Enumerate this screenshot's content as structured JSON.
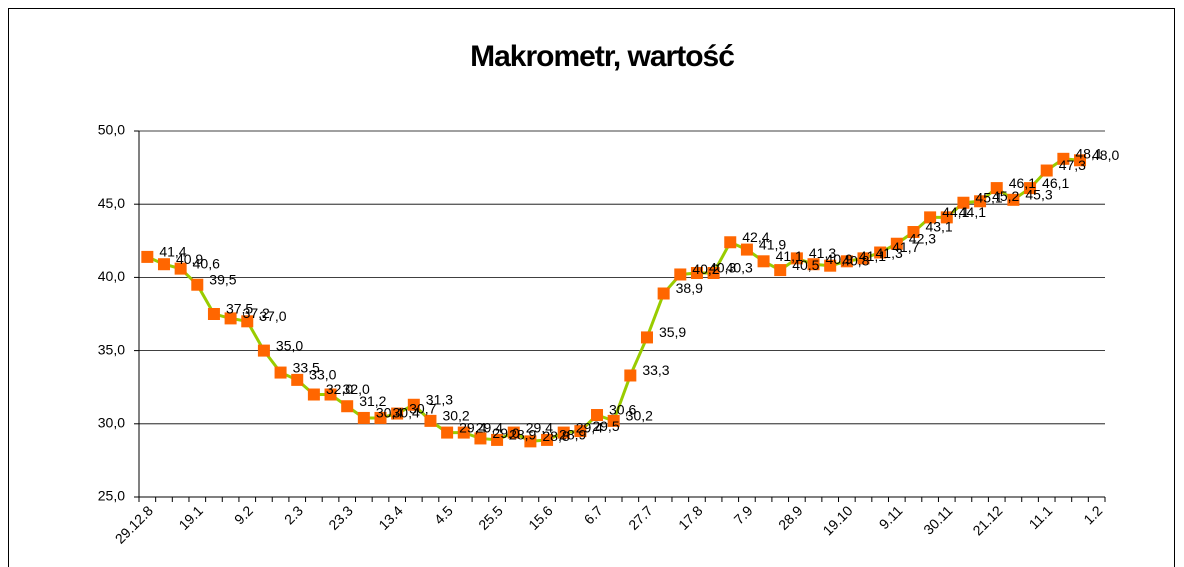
{
  "chart_data": {
    "type": "line",
    "title": "Makrometr, wartość",
    "categories": [
      "29.12.8",
      null,
      null,
      "19.1",
      null,
      null,
      "9.2",
      null,
      null,
      "2.3",
      null,
      null,
      "23.3",
      null,
      null,
      "13.4",
      null,
      null,
      "4.5",
      null,
      null,
      "25.5",
      null,
      null,
      "15.6",
      null,
      null,
      "6.7",
      null,
      null,
      "27.7",
      null,
      null,
      "17.8",
      null,
      null,
      "7.9",
      null,
      null,
      "28.9",
      null,
      null,
      "19.10",
      null,
      null,
      "9.11",
      null,
      null,
      "30.11",
      null,
      null,
      "21.12",
      null,
      null,
      "11.1",
      null,
      null,
      "1.2"
    ],
    "series": [
      {
        "name": "wartość",
        "color": "#99cc00",
        "marker_color": "#ff6600",
        "values": [
          41.4,
          40.9,
          40.6,
          39.5,
          37.5,
          37.2,
          37.0,
          35.0,
          33.5,
          33.0,
          32.0,
          32.0,
          31.2,
          30.4,
          30.4,
          30.7,
          31.3,
          30.2,
          29.4,
          29.4,
          29.0,
          28.9,
          29.4,
          28.8,
          28.9,
          29.4,
          29.5,
          30.6,
          30.2,
          33.3,
          35.9,
          38.9,
          40.2,
          40.3,
          40.3,
          42.4,
          41.9,
          41.1,
          40.5,
          41.3,
          40.9,
          40.8,
          41.1,
          41.3,
          41.7,
          42.3,
          43.1,
          44.1,
          44.1,
          45.1,
          45.2,
          46.1,
          45.3,
          46.1,
          47.3,
          48.1,
          48.0,
          null
        ],
        "value_labels": [
          "41,4",
          "40,9",
          "40,6",
          "39,5",
          "37,5",
          "37,2",
          "37,0",
          "35,0",
          "33,5",
          "33,0",
          "32,0",
          "32,0",
          "31,2",
          "30,4",
          "30,4",
          "30,7",
          "31,3",
          "30,2",
          "29,4",
          "29,4",
          "29,0",
          "28,9",
          "29,4",
          "28,8",
          "28,9",
          "29,4",
          "29,5",
          "30,6",
          "30,2",
          "33,3",
          "35,9",
          "38,9",
          "40,2",
          "40,3",
          "40,3",
          "42,4",
          "41,9",
          "41,1",
          "40,5",
          "41,3",
          "40,9",
          "40,8",
          "41,1",
          "41,3",
          "41,7",
          "42,3",
          "43,1",
          "44,1",
          "44,1",
          "45,1",
          "45,2",
          "46,1",
          "45,3",
          "46,1",
          "47,3",
          "48,1",
          "48,0",
          null
        ]
      }
    ],
    "ylim": [
      25,
      50
    ],
    "yticks": [
      {
        "value": 25,
        "label": "25,0"
      },
      {
        "value": 30,
        "label": "30,0"
      },
      {
        "value": 35,
        "label": "35,0"
      },
      {
        "value": 40,
        "label": "40,0"
      },
      {
        "value": 45,
        "label": "45,0"
      },
      {
        "value": 50,
        "label": "50,0"
      }
    ],
    "grid": true
  }
}
